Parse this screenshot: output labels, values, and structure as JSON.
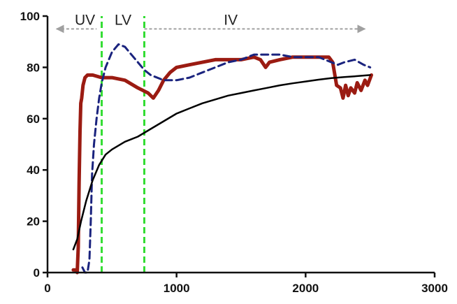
{
  "chart_data": {
    "type": "line",
    "title": "",
    "xlabel": "",
    "ylabel": "",
    "xlim": [
      0,
      3000
    ],
    "ylim": [
      0,
      100
    ],
    "x_ticks": [
      0,
      1000,
      2000,
      3000
    ],
    "y_ticks": [
      0,
      20,
      40,
      60,
      80,
      100
    ],
    "grid": false,
    "legend": "none",
    "regions": [
      {
        "label": "UV",
        "from": 0,
        "to": 420
      },
      {
        "label": "LV",
        "from": 420,
        "to": 750
      },
      {
        "label": "IV",
        "from": 750,
        "to": 2500
      }
    ],
    "region_arrow_color": "#a0a0a0",
    "boundaries": [
      {
        "x": 420,
        "color": "#33dd33"
      },
      {
        "x": 750,
        "color": "#33dd33"
      }
    ],
    "series": [
      {
        "color": "#9b1b12",
        "style": "solid",
        "width": 5,
        "points": [
          [
            200,
            1
          ],
          [
            215,
            1
          ],
          [
            230,
            0
          ],
          [
            238,
            10
          ],
          [
            245,
            35
          ],
          [
            252,
            55
          ],
          [
            258,
            66
          ],
          [
            265,
            68
          ],
          [
            275,
            73
          ],
          [
            290,
            76
          ],
          [
            310,
            77
          ],
          [
            350,
            77
          ],
          [
            420,
            76
          ],
          [
            500,
            76
          ],
          [
            600,
            75
          ],
          [
            700,
            72
          ],
          [
            780,
            70
          ],
          [
            820,
            68
          ],
          [
            860,
            71
          ],
          [
            900,
            75
          ],
          [
            950,
            78
          ],
          [
            1000,
            80
          ],
          [
            1100,
            81
          ],
          [
            1200,
            82
          ],
          [
            1300,
            83
          ],
          [
            1400,
            83
          ],
          [
            1500,
            83
          ],
          [
            1600,
            84
          ],
          [
            1650,
            83
          ],
          [
            1690,
            80
          ],
          [
            1720,
            82
          ],
          [
            1800,
            83
          ],
          [
            1900,
            84
          ],
          [
            2000,
            84
          ],
          [
            2100,
            84
          ],
          [
            2180,
            84
          ],
          [
            2210,
            82
          ],
          [
            2240,
            73
          ],
          [
            2270,
            72
          ],
          [
            2290,
            68
          ],
          [
            2310,
            73
          ],
          [
            2330,
            69
          ],
          [
            2350,
            72
          ],
          [
            2380,
            70
          ],
          [
            2400,
            74
          ],
          [
            2430,
            71
          ],
          [
            2460,
            75
          ],
          [
            2480,
            73
          ],
          [
            2510,
            77
          ]
        ]
      },
      {
        "color": "#1a237e",
        "style": "dashed",
        "width": 3,
        "points": [
          [
            270,
            2
          ],
          [
            290,
            0
          ],
          [
            310,
            0
          ],
          [
            325,
            5
          ],
          [
            335,
            20
          ],
          [
            345,
            38
          ],
          [
            360,
            50
          ],
          [
            380,
            60
          ],
          [
            400,
            68
          ],
          [
            420,
            74
          ],
          [
            450,
            80
          ],
          [
            500,
            86
          ],
          [
            550,
            89
          ],
          [
            600,
            88
          ],
          [
            650,
            85
          ],
          [
            700,
            82
          ],
          [
            750,
            79
          ],
          [
            800,
            77
          ],
          [
            900,
            75
          ],
          [
            1000,
            75
          ],
          [
            1100,
            76
          ],
          [
            1200,
            78
          ],
          [
            1300,
            80
          ],
          [
            1400,
            82
          ],
          [
            1500,
            83
          ],
          [
            1600,
            85
          ],
          [
            1700,
            85
          ],
          [
            1800,
            85
          ],
          [
            1900,
            84
          ],
          [
            2000,
            84
          ],
          [
            2100,
            84
          ],
          [
            2200,
            82
          ],
          [
            2250,
            81
          ],
          [
            2300,
            82
          ],
          [
            2380,
            83
          ],
          [
            2450,
            81
          ],
          [
            2500,
            80
          ]
        ]
      },
      {
        "color": "#000000",
        "style": "solid",
        "width": 2.5,
        "points": [
          [
            200,
            9
          ],
          [
            230,
            13
          ],
          [
            260,
            20
          ],
          [
            300,
            28
          ],
          [
            350,
            36
          ],
          [
            400,
            42
          ],
          [
            450,
            46
          ],
          [
            500,
            48
          ],
          [
            600,
            51
          ],
          [
            700,
            53
          ],
          [
            800,
            56
          ],
          [
            900,
            59
          ],
          [
            1000,
            62
          ],
          [
            1100,
            64
          ],
          [
            1200,
            66
          ],
          [
            1300,
            67.5
          ],
          [
            1400,
            69
          ],
          [
            1500,
            70
          ],
          [
            1600,
            71
          ],
          [
            1700,
            72
          ],
          [
            1800,
            73
          ],
          [
            1900,
            73.8
          ],
          [
            2000,
            74.5
          ],
          [
            2100,
            75.2
          ],
          [
            2200,
            75.8
          ],
          [
            2300,
            76.2
          ],
          [
            2400,
            76.6
          ],
          [
            2500,
            77
          ]
        ]
      }
    ]
  }
}
